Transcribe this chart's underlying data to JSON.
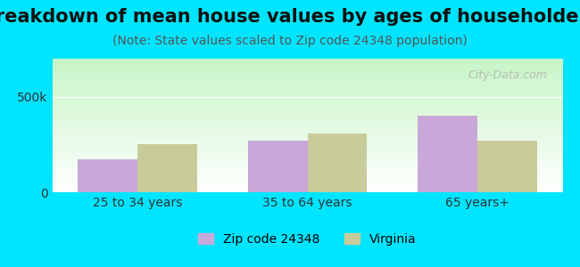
{
  "title": "Breakdown of mean house values by ages of householders",
  "subtitle": "(Note: State values scaled to Zip code 24348 population)",
  "categories": [
    "25 to 34 years",
    "35 to 64 years",
    "65 years+"
  ],
  "zip_values": [
    175000,
    270000,
    400000
  ],
  "state_values": [
    250000,
    310000,
    270000
  ],
  "zip_color": "#c8a8d8",
  "state_color": "#c8cc9a",
  "background_outer": "#00e5ff",
  "ylim": [
    0,
    700000
  ],
  "bar_width": 0.35,
  "legend_zip": "Zip code 24348",
  "legend_state": "Virginia",
  "watermark": "City-Data.com",
  "title_fontsize": 15,
  "subtitle_fontsize": 10,
  "tick_fontsize": 10
}
